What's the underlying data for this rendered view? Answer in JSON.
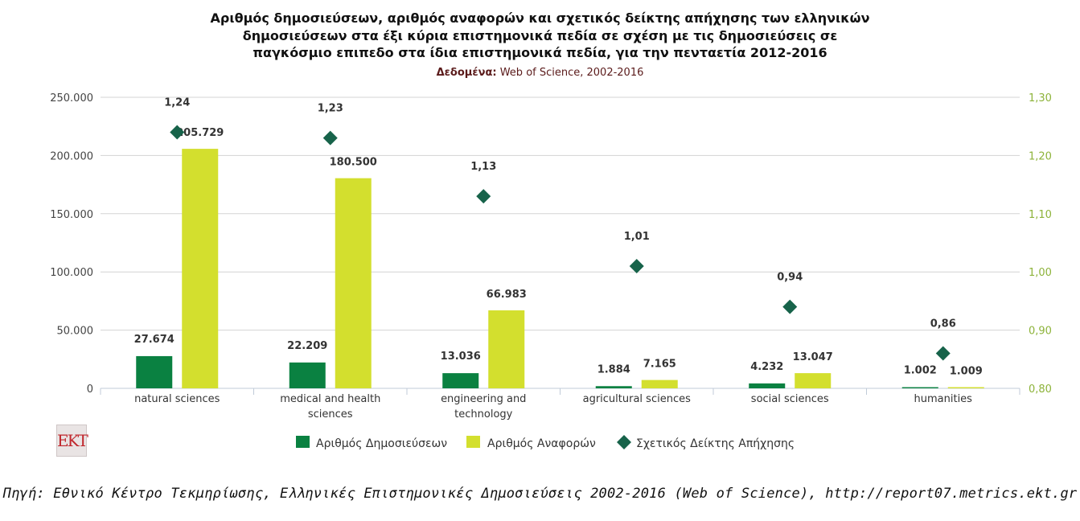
{
  "title": "Αριθμός δημοσιεύσεων, αριθμός αναφορών και σχετικός δείκτης απήχησης των ελληνικών δημοσιεύσεων στα έξι κύρια επιστημονικά πεδία σε σχέση με τις δημοσιεύσεις σε παγκόσμιο επιπεδο στα ίδια επιστημονικά πεδία, για την πενταετία 2012-2016",
  "title_lines": [
    "Αριθμός δημοσιεύσεων, αριθμός αναφορών και σχετικός δείκτης απήχησης των ελληνικών",
    "δημοσιεύσεων στα έξι κύρια επιστημονικά πεδία σε σχέση με τις δημοσιεύσεις σε",
    "παγκόσμιο επιπεδο στα ίδια επιστημονικά πεδία, για την πενταετία 2012-2016"
  ],
  "subtitle_label": "Δεδομένα:",
  "subtitle_value": "Web of Science, 2002-2016",
  "logo_text": "EKT",
  "source": "Πηγή: Εθνικό Κέντρο Τεκμηρίωσης, Ελληνικές Επιστημονικές Δημοσιεύσεις 2002-2016 (Web of Science), http://report07.metrics.ekt.gr",
  "colors": {
    "publications": "#0a8141",
    "citations": "#d3df2e",
    "index": "#17634a",
    "right_axis": "#8db33a",
    "grid": "#d3d3d3"
  },
  "chart_data": {
    "type": "bar",
    "categories": [
      [
        "natural sciences"
      ],
      [
        "medical and health",
        "sciences"
      ],
      [
        "engineering and",
        "technology"
      ],
      [
        "agricultural sciences"
      ],
      [
        "social sciences"
      ],
      [
        "humanities"
      ]
    ],
    "series": [
      {
        "name": "Αριθμός Δημοσιεύσεων",
        "type": "bar",
        "axis": "left",
        "values": [
          27674,
          22209,
          13036,
          1884,
          4232,
          1002
        ],
        "labels": [
          "27.674",
          "22.209",
          "13.036",
          "1.884",
          "4.232",
          "1.002"
        ]
      },
      {
        "name": "Αριθμός Αναφορών",
        "type": "bar",
        "axis": "left",
        "values": [
          205729,
          180500,
          66983,
          7165,
          13047,
          1009
        ],
        "labels": [
          "205.729",
          "180.500",
          "66.983",
          "7.165",
          "13.047",
          "1.009"
        ]
      },
      {
        "name": "Σχετικός Δείκτης Απήχησης",
        "type": "scatter",
        "marker": "diamond",
        "axis": "right",
        "values": [
          1.24,
          1.23,
          1.13,
          1.01,
          0.94,
          0.86
        ],
        "labels": [
          "1,24",
          "1,23",
          "1,13",
          "1,01",
          "0,94",
          "0,86"
        ]
      }
    ],
    "left_axis": {
      "ylim": [
        0,
        250000
      ],
      "ticks": [
        "0",
        "50.000",
        "100.000",
        "150.000",
        "200.000",
        "250.000"
      ]
    },
    "right_axis": {
      "ylim": [
        0.8,
        1.3
      ],
      "ticks": [
        "0,80",
        "0,90",
        "1,00",
        "1,10",
        "1,20",
        "1,30"
      ]
    },
    "grid": true,
    "legend_position": "bottom-center"
  }
}
